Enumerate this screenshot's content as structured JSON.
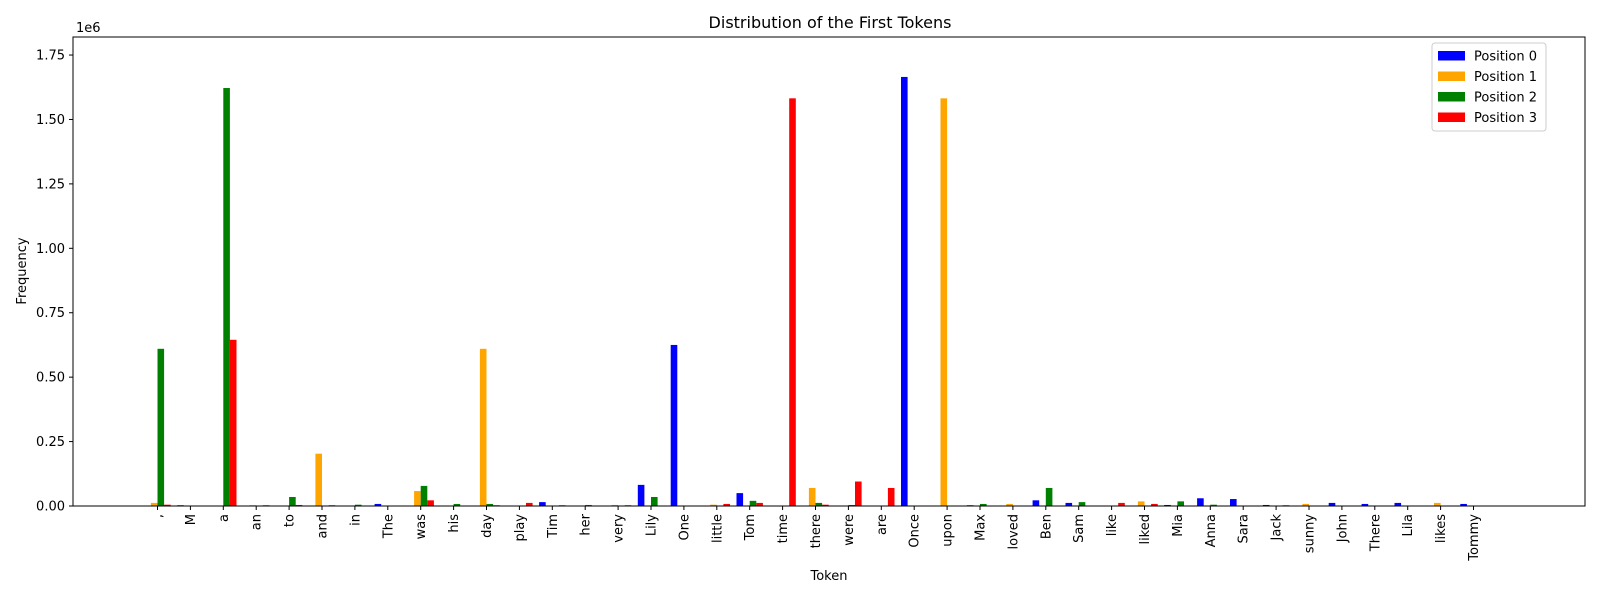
{
  "chart_data": {
    "type": "bar",
    "title": "Distribution of the First Tokens",
    "xlabel": "Token",
    "ylabel": "Frequency",
    "y_multiplier_label": "1e6",
    "y_scale": 1000000,
    "ylim": [
      0,
      1820000
    ],
    "yticks": [
      "0.00",
      "0.25",
      "0.50",
      "0.75",
      "1.00",
      "1.25",
      "1.50",
      "1.75"
    ],
    "legend_position": "top-right",
    "grid": false,
    "categories": [
      ",",
      "M",
      "a",
      "an",
      "to",
      "and",
      "in",
      "The",
      "was",
      "his",
      "day",
      "play",
      "Tim",
      "her",
      "very",
      "Lily",
      "One",
      "little",
      "Tom",
      "time",
      "there",
      "were",
      "are",
      "Once",
      "upon",
      "Max",
      "loved",
      "Ben",
      "Sam",
      "like",
      "liked",
      "Mia",
      "Anna",
      "Sara",
      "Jack",
      "sunny",
      "John",
      "There",
      "Lila",
      "likes",
      "Tommy"
    ],
    "series": [
      {
        "name": "Position 0",
        "color": "#0000ff",
        "values": [
          0,
          3000,
          0,
          0,
          0,
          0,
          0,
          8000,
          0,
          0,
          0,
          0,
          15000,
          0,
          0,
          82000,
          625000,
          0,
          50000,
          0,
          0,
          0,
          0,
          1665000,
          0,
          3000,
          0,
          22000,
          12000,
          0,
          0,
          4000,
          30000,
          27000,
          4000,
          0,
          12000,
          8000,
          12000,
          0,
          8000
        ]
      },
      {
        "name": "Position 1",
        "color": "#ffa500",
        "values": [
          12000,
          0,
          0,
          3000,
          0,
          203000,
          0,
          0,
          58000,
          0,
          610000,
          0,
          0,
          0,
          4000,
          0,
          0,
          5000,
          0,
          0,
          70000,
          0,
          0,
          0,
          1582000,
          0,
          8000,
          0,
          0,
          0,
          18000,
          0,
          0,
          0,
          0,
          8000,
          0,
          0,
          0,
          12000,
          0
        ]
      },
      {
        "name": "Position 2",
        "color": "#008000",
        "values": [
          610000,
          0,
          1622000,
          0,
          35000,
          0,
          5000,
          0,
          78000,
          8000,
          8000,
          0,
          0,
          4000,
          0,
          35000,
          0,
          0,
          20000,
          0,
          12000,
          4000,
          0,
          0,
          0,
          8000,
          0,
          70000,
          15000,
          0,
          0,
          18000,
          5000,
          0,
          0,
          0,
          0,
          0,
          0,
          0,
          0
        ]
      },
      {
        "name": "Position 3",
        "color": "#ff0000",
        "values": [
          5000,
          0,
          645000,
          3000,
          4000,
          3000,
          0,
          0,
          22000,
          0,
          3000,
          12000,
          3000,
          0,
          3000,
          0,
          0,
          8000,
          12000,
          1582000,
          5000,
          95000,
          70000,
          0,
          0,
          0,
          0,
          0,
          0,
          12000,
          8000,
          0,
          0,
          0,
          3000,
          0,
          0,
          0,
          0,
          0,
          0
        ]
      }
    ]
  }
}
